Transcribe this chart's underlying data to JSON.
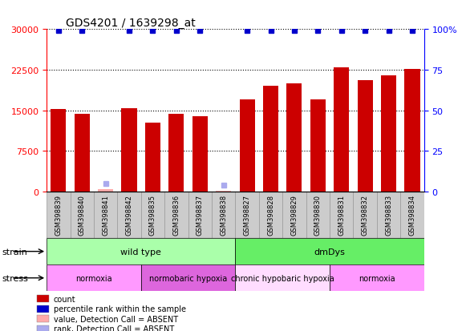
{
  "title": "GDS4201 / 1639298_at",
  "samples": [
    "GSM398839",
    "GSM398840",
    "GSM398841",
    "GSM398842",
    "GSM398835",
    "GSM398836",
    "GSM398837",
    "GSM398838",
    "GSM398827",
    "GSM398828",
    "GSM398829",
    "GSM398830",
    "GSM398831",
    "GSM398832",
    "GSM398833",
    "GSM398834"
  ],
  "counts": [
    15200,
    14300,
    400,
    15400,
    12800,
    14300,
    13900,
    200,
    17000,
    19500,
    20000,
    17000,
    23000,
    20500,
    21500,
    22700
  ],
  "percentile_ranks": [
    99,
    99,
    5,
    99,
    99,
    99,
    99,
    4,
    99,
    99,
    99,
    99,
    99,
    99,
    99,
    99
  ],
  "absent_mask": [
    false,
    false,
    true,
    false,
    false,
    false,
    false,
    true,
    false,
    false,
    false,
    false,
    false,
    false,
    false,
    false
  ],
  "bar_color": "#cc0000",
  "absent_bar_color": "#ffaaaa",
  "rank_color": "#0000cc",
  "absent_rank_color": "#aaaaee",
  "ylim_left": [
    0,
    30000
  ],
  "ylim_right": [
    0,
    100
  ],
  "yticks_left": [
    0,
    7500,
    15000,
    22500,
    30000
  ],
  "yticks_right": [
    0,
    25,
    50,
    75,
    100
  ],
  "strain_groups": [
    {
      "label": "wild type",
      "start": 0,
      "end": 8,
      "color": "#aaffaa"
    },
    {
      "label": "dmDys",
      "start": 8,
      "end": 16,
      "color": "#66ee66"
    }
  ],
  "stress_groups": [
    {
      "label": "normoxia",
      "start": 0,
      "end": 4,
      "color": "#ff99ff"
    },
    {
      "label": "normobaric hypoxia",
      "start": 4,
      "end": 8,
      "color": "#dd66dd"
    },
    {
      "label": "chronic hypobaric hypoxia",
      "start": 8,
      "end": 12,
      "color": "#ffddff"
    },
    {
      "label": "normoxia",
      "start": 12,
      "end": 16,
      "color": "#ff99ff"
    }
  ],
  "legend_items": [
    {
      "label": "count",
      "color": "#cc0000"
    },
    {
      "label": "percentile rank within the sample",
      "color": "#0000cc"
    },
    {
      "label": "value, Detection Call = ABSENT",
      "color": "#ffaaaa"
    },
    {
      "label": "rank, Detection Call = ABSENT",
      "color": "#aaaaee"
    }
  ],
  "bg_color": "#ffffff"
}
